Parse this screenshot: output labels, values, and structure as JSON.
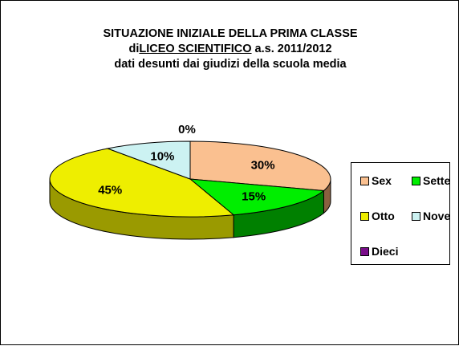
{
  "chart_data": {
    "type": "pie",
    "title_lines": [
      [
        "SITUAZIONE INIZIALE DELLA PRIMA CLASSE"
      ],
      [
        "di",
        "LICEO SCIENTIFICO",
        " a.s. 2011/2012"
      ],
      [
        "dati desunti dai giudizi della scuola media"
      ]
    ],
    "slices": [
      {
        "name": "Sex",
        "value": 30,
        "label": "30%",
        "color": "#fac090",
        "side": "#8a6040"
      },
      {
        "name": "Sette",
        "value": 15,
        "label": "15%",
        "color": "#00ee00",
        "side": "#008000"
      },
      {
        "name": "Otto",
        "value": 45,
        "label": "45%",
        "color": "#eeee00",
        "side": "#9a9a00"
      },
      {
        "name": "Nove",
        "value": 10,
        "label": "10%",
        "color": "#ccf2f2",
        "side": "#7fa9a9"
      },
      {
        "name": "Dieci",
        "value": 0,
        "label": "0%",
        "color": "#7a0d8a",
        "side": "#4a0055"
      }
    ],
    "legend": {
      "position": "right",
      "entries": [
        "Sex",
        "Sette",
        "Otto",
        "Nove",
        "Dieci"
      ]
    }
  }
}
